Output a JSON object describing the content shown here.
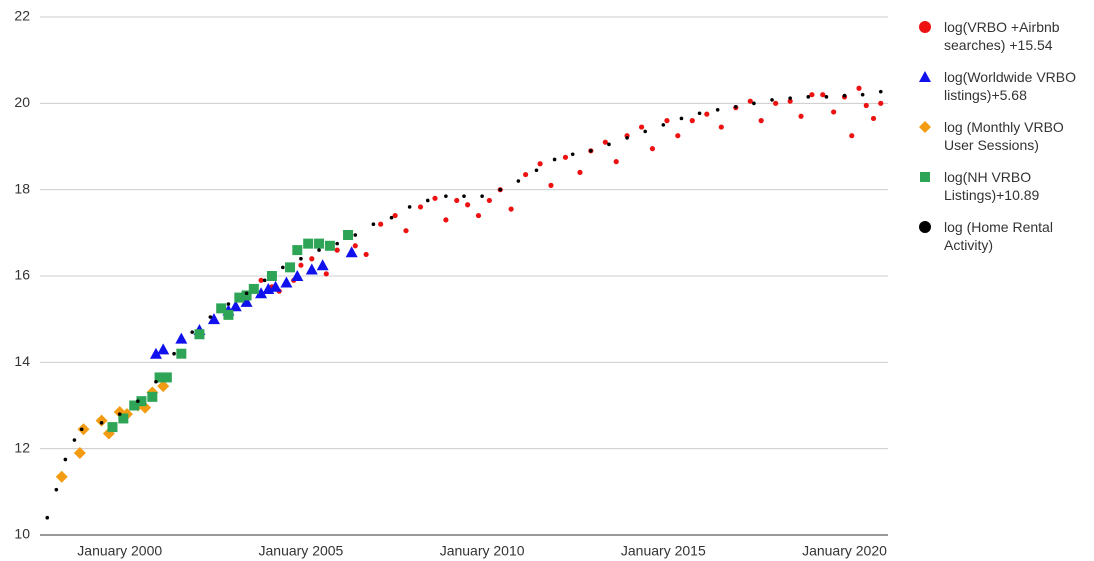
{
  "chart_data": {
    "type": "scatter",
    "xlim": [
      1997.8,
      2021.2
    ],
    "xticks": [
      {
        "value": 2000,
        "label": "January 2000"
      },
      {
        "value": 2005,
        "label": "January 2005"
      },
      {
        "value": 2010,
        "label": "January 2010"
      },
      {
        "value": 2015,
        "label": "January 2015"
      },
      {
        "value": 2020,
        "label": "January 2020"
      }
    ],
    "ylim": [
      10,
      22
    ],
    "yticks": [
      10,
      12,
      14,
      16,
      18,
      20,
      22
    ],
    "grid": true,
    "series": [
      {
        "name": "log(VRBO +Airbnb searches) +15.54",
        "color": "#ee1111",
        "marker": "circle",
        "x": [
          2003.9,
          2004.2,
          2004.4,
          2004.8,
          2005.0,
          2005.3,
          2005.7,
          2006.0,
          2006.5,
          2006.8,
          2007.2,
          2007.6,
          2007.9,
          2008.3,
          2008.7,
          2009.0,
          2009.3,
          2009.6,
          2009.9,
          2010.2,
          2010.5,
          2010.8,
          2011.2,
          2011.6,
          2011.9,
          2012.3,
          2012.7,
          2013.0,
          2013.4,
          2013.7,
          2014.0,
          2014.4,
          2014.7,
          2015.1,
          2015.4,
          2015.8,
          2016.2,
          2016.6,
          2017.0,
          2017.4,
          2017.7,
          2018.1,
          2018.5,
          2018.8,
          2019.1,
          2019.4,
          2019.7,
          2020.0,
          2020.2,
          2020.4,
          2020.6,
          2020.8,
          2021.0
        ],
        "values": [
          15.9,
          15.75,
          15.65,
          15.9,
          16.25,
          16.4,
          16.05,
          16.6,
          16.7,
          16.5,
          17.2,
          17.4,
          17.05,
          17.6,
          17.8,
          17.3,
          17.75,
          17.65,
          17.4,
          17.75,
          18.0,
          17.55,
          18.35,
          18.6,
          18.1,
          18.75,
          18.4,
          18.9,
          19.1,
          18.65,
          19.25,
          19.45,
          18.95,
          19.6,
          19.25,
          19.6,
          19.75,
          19.45,
          19.9,
          20.05,
          19.6,
          20.0,
          20.05,
          19.7,
          20.2,
          20.2,
          19.8,
          20.15,
          19.25,
          20.35,
          19.95,
          19.65,
          20.0
        ]
      },
      {
        "name": "log(Worldwide VRBO listings)+5.68",
        "color": "#1111ee",
        "marker": "triangle",
        "x": [
          2001.0,
          2001.2,
          2001.7,
          2002.2,
          2002.6,
          2003.0,
          2003.2,
          2003.5,
          2003.9,
          2004.1,
          2004.3,
          2004.6,
          2004.9,
          2005.3,
          2005.6,
          2006.4
        ],
        "values": [
          14.2,
          14.3,
          14.55,
          14.75,
          15.0,
          15.2,
          15.3,
          15.4,
          15.6,
          15.7,
          15.75,
          15.85,
          16.0,
          16.15,
          16.25,
          16.55
        ]
      },
      {
        "name": "log (Monthly VRBO User Sessions)",
        "color": "#f39c12",
        "marker": "diamond",
        "x": [
          1998.4,
          1998.9,
          1999.0,
          1999.5,
          1999.7,
          2000.0,
          2000.2,
          2000.5,
          2000.7,
          2000.9,
          2001.2
        ],
        "values": [
          11.35,
          11.9,
          12.45,
          12.65,
          12.35,
          12.85,
          12.8,
          13.0,
          12.95,
          13.3,
          13.45
        ]
      },
      {
        "name": "log(NH VRBO Listings)+10.89",
        "color": "#2ea556",
        "marker": "square",
        "x": [
          1999.8,
          2000.1,
          2000.4,
          2000.6,
          2000.9,
          2001.1,
          2001.3,
          2001.7,
          2002.2,
          2002.8,
          2003.0,
          2003.3,
          2003.5,
          2003.7,
          2004.2,
          2004.7,
          2004.9,
          2005.2,
          2005.5,
          2005.8,
          2006.3
        ],
        "values": [
          12.5,
          12.7,
          13.0,
          13.1,
          13.2,
          13.65,
          13.65,
          14.2,
          14.65,
          15.25,
          15.1,
          15.5,
          15.55,
          15.7,
          16.0,
          16.2,
          16.6,
          16.75,
          16.75,
          16.7,
          16.95
        ]
      },
      {
        "name": "log (Home Rental Activity)",
        "color": "#000000",
        "marker": "dot",
        "x": [
          1998.0,
          1998.25,
          1998.5,
          1998.75,
          1998.95,
          1999.5,
          2000.0,
          2000.5,
          2001.0,
          2001.5,
          2002.0,
          2002.5,
          2003.0,
          2003.5,
          2004.0,
          2004.5,
          2005.0,
          2005.5,
          2006.0,
          2006.5,
          2007.0,
          2007.5,
          2008.0,
          2008.5,
          2009.0,
          2009.5,
          2010.0,
          2010.5,
          2011.0,
          2011.5,
          2012.0,
          2012.5,
          2013.0,
          2013.5,
          2014.0,
          2014.5,
          2015.0,
          2015.5,
          2016.0,
          2016.5,
          2017.0,
          2017.5,
          2018.0,
          2018.5,
          2019.0,
          2019.5,
          2020.0,
          2020.5,
          2021.0
        ],
        "values": [
          10.4,
          11.05,
          11.75,
          12.2,
          12.45,
          12.6,
          12.8,
          13.1,
          13.55,
          14.2,
          14.7,
          15.05,
          15.35,
          15.6,
          15.9,
          16.2,
          16.4,
          16.6,
          16.75,
          16.95,
          17.2,
          17.35,
          17.6,
          17.75,
          17.85,
          17.85,
          17.85,
          18.0,
          18.2,
          18.45,
          18.7,
          18.82,
          18.9,
          19.05,
          19.2,
          19.35,
          19.5,
          19.65,
          19.77,
          19.85,
          19.92,
          20.0,
          20.08,
          20.12,
          20.15,
          20.15,
          20.18,
          20.2,
          20.27
        ]
      }
    ]
  }
}
